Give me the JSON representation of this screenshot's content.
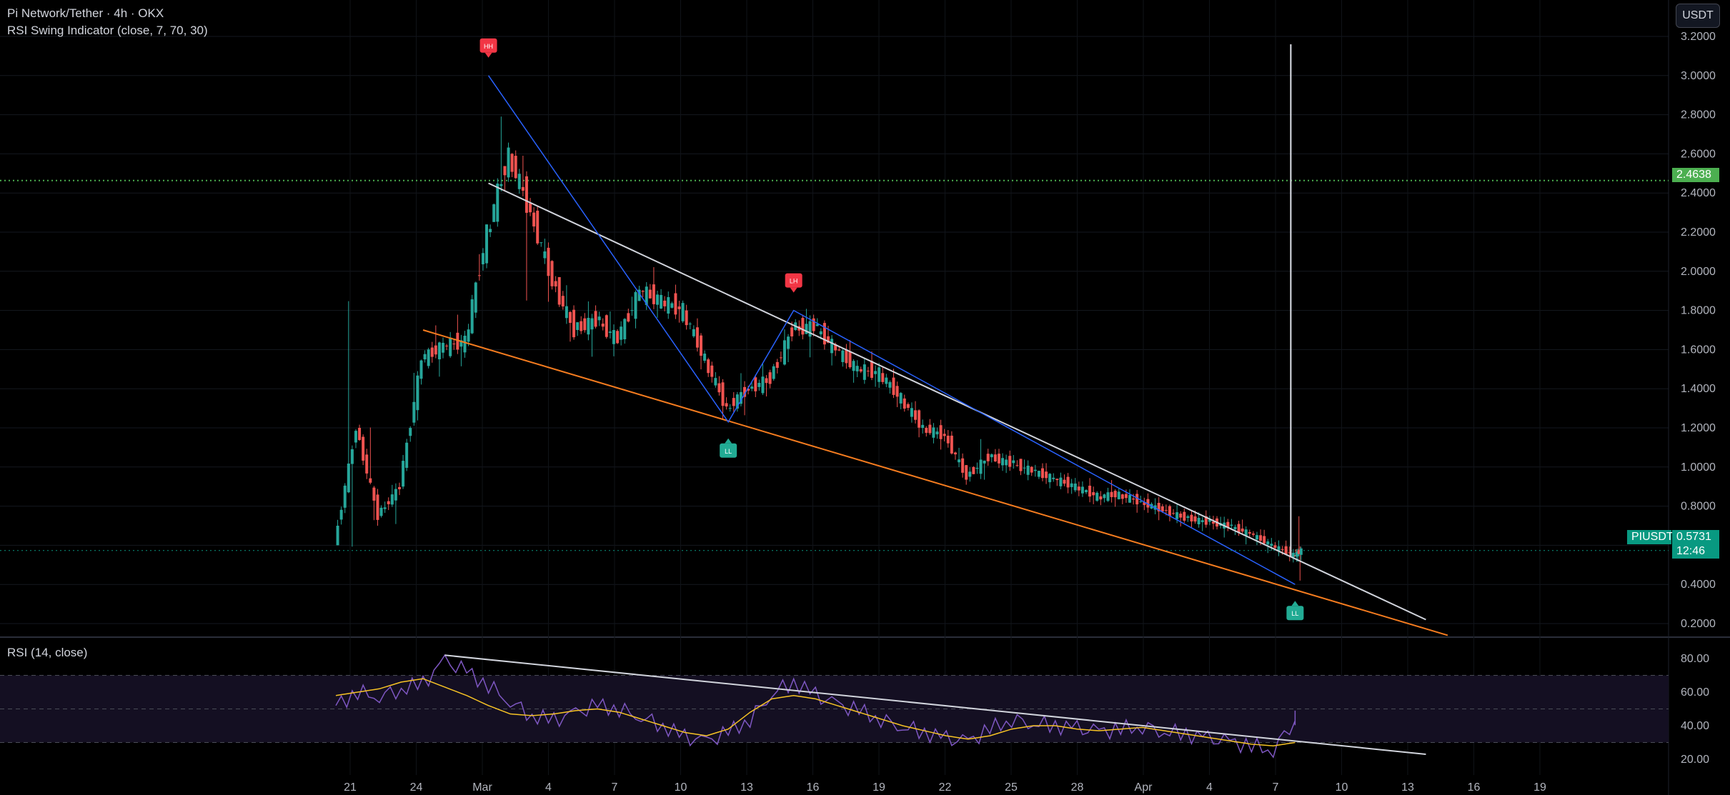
{
  "header": {
    "symbol_title": "Pi Network/Tether · 4h · OKX",
    "indicator_title": "RSI Swing Indicator (close, 7, 70, 30)",
    "currency_button": "USDT"
  },
  "price_axis": {
    "ticks": [
      "3.2000",
      "3.0000",
      "2.8000",
      "2.6000",
      "2.4000",
      "2.2000",
      "2.0000",
      "1.8000",
      "1.6000",
      "1.4000",
      "1.2000",
      "1.0000",
      "0.8000",
      "0.6000",
      "0.4000",
      "0.2000"
    ],
    "level_label": "2.4638",
    "symbol_label": "PIUSDT",
    "last_price": "0.5731",
    "countdown": "12:46"
  },
  "rsi_panel": {
    "title": "RSI (14, close)",
    "ticks": [
      "80.00",
      "60.00",
      "40.00",
      "20.00"
    ]
  },
  "time_axis": {
    "labels": [
      "21",
      "24",
      "Mar",
      "4",
      "7",
      "10",
      "13",
      "16",
      "19",
      "22",
      "25",
      "28",
      "Apr",
      "4",
      "7",
      "10",
      "13",
      "16",
      "19"
    ]
  },
  "swing_labels": [
    {
      "text": "HH",
      "kind": "high"
    },
    {
      "text": "LH",
      "kind": "high"
    },
    {
      "text": "LL",
      "kind": "low"
    },
    {
      "text": "LL",
      "kind": "low"
    }
  ],
  "colors": {
    "up": "#26a69a",
    "down": "#ef5350",
    "trendline": "#d1d4dc",
    "support": "#f57c1f",
    "swingline": "#2962ff",
    "rsi": "#7e57c2",
    "rsi_ma": "#f7c325",
    "level": "#4caf50"
  },
  "chart_data": {
    "type": "candlestick",
    "x_range": [
      "2025-02-20",
      "2025-04-20"
    ],
    "y_range": [
      0.1,
      3.2
    ],
    "horizontal_level": 2.4638,
    "last_price": 0.5731,
    "price_path": [
      [
        "2025-02-20",
        0.6,
        2.2,
        0.1,
        1.2
      ],
      [
        "2025-02-21",
        1.2,
        1.5,
        0.65,
        0.75
      ],
      [
        "2025-02-22",
        0.75,
        0.95,
        0.62,
        0.9
      ],
      [
        "2025-02-23",
        0.9,
        1.7,
        0.85,
        1.55
      ],
      [
        "2025-02-24",
        1.55,
        1.72,
        1.45,
        1.62
      ],
      [
        "2025-02-25",
        1.62,
        1.75,
        1.5,
        1.64
      ],
      [
        "2025-02-26",
        1.64,
        2.3,
        1.6,
        2.2
      ],
      [
        "2025-02-27",
        2.2,
        3.0,
        2.1,
        2.6
      ],
      [
        "2025-02-28",
        2.6,
        2.8,
        1.75,
        2.3
      ],
      [
        "2025-03-01",
        2.3,
        2.35,
        1.8,
        1.95
      ],
      [
        "2025-03-02",
        1.95,
        2.05,
        1.6,
        1.7
      ],
      [
        "2025-03-03",
        1.7,
        1.85,
        1.55,
        1.75
      ],
      [
        "2025-03-04",
        1.75,
        1.85,
        1.6,
        1.65
      ],
      [
        "2025-03-05",
        1.65,
        1.95,
        1.62,
        1.9
      ],
      [
        "2025-03-06",
        1.9,
        2.0,
        1.8,
        1.85
      ],
      [
        "2025-03-07",
        1.85,
        1.88,
        1.75,
        1.8
      ],
      [
        "2025-03-08",
        1.8,
        1.82,
        1.5,
        1.55
      ],
      [
        "2025-03-09",
        1.55,
        1.58,
        1.25,
        1.3
      ],
      [
        "2025-03-10",
        1.3,
        1.5,
        1.22,
        1.4
      ],
      [
        "2025-03-11",
        1.4,
        1.5,
        1.35,
        1.45
      ],
      [
        "2025-03-12",
        1.45,
        1.75,
        1.4,
        1.7
      ],
      [
        "2025-03-13",
        1.7,
        1.8,
        1.6,
        1.72
      ],
      [
        "2025-03-14",
        1.72,
        1.75,
        1.55,
        1.6
      ],
      [
        "2025-03-15",
        1.6,
        1.65,
        1.45,
        1.5
      ],
      [
        "2025-03-16",
        1.5,
        1.55,
        1.42,
        1.48
      ],
      [
        "2025-03-17",
        1.48,
        1.5,
        1.3,
        1.35
      ],
      [
        "2025-03-18",
        1.35,
        1.38,
        1.15,
        1.2
      ],
      [
        "2025-03-19",
        1.2,
        1.22,
        1.1,
        1.16
      ],
      [
        "2025-03-20",
        1.16,
        1.2,
        0.92,
        0.95
      ],
      [
        "2025-03-21",
        0.95,
        1.15,
        0.85,
        1.05
      ],
      [
        "2025-03-22",
        1.05,
        1.08,
        0.98,
        1.02
      ],
      [
        "2025-03-23",
        1.02,
        1.04,
        0.96,
        0.98
      ],
      [
        "2025-03-24",
        0.98,
        1.0,
        0.92,
        0.94
      ],
      [
        "2025-03-25",
        0.94,
        0.96,
        0.88,
        0.9
      ],
      [
        "2025-03-26",
        0.9,
        0.92,
        0.82,
        0.85
      ],
      [
        "2025-03-27",
        0.85,
        0.9,
        0.82,
        0.86
      ],
      [
        "2025-03-28",
        0.86,
        0.88,
        0.8,
        0.82
      ],
      [
        "2025-03-29",
        0.82,
        0.84,
        0.76,
        0.78
      ],
      [
        "2025-03-30",
        0.78,
        0.8,
        0.72,
        0.74
      ],
      [
        "2025-03-31",
        0.74,
        0.76,
        0.7,
        0.72
      ],
      [
        "2025-04-01",
        0.72,
        0.74,
        0.68,
        0.7
      ],
      [
        "2025-04-02",
        0.7,
        0.72,
        0.64,
        0.66
      ],
      [
        "2025-04-03",
        0.66,
        0.68,
        0.58,
        0.6
      ],
      [
        "2025-04-04",
        0.6,
        0.62,
        0.53,
        0.55
      ],
      [
        "2025-04-05",
        0.55,
        0.75,
        0.4,
        0.5731
      ]
    ],
    "trendlines": [
      {
        "name": "resistance",
        "color": "#d1d4dc",
        "points": [
          [
            "2025-02-27",
            2.45
          ],
          [
            "2025-04-11",
            0.22
          ]
        ]
      },
      {
        "name": "support",
        "color": "#f57c1f",
        "points": [
          [
            "2025-02-24",
            1.7
          ],
          [
            "2025-04-12",
            0.14
          ]
        ]
      },
      {
        "name": "swing",
        "color": "#2962ff",
        "points": [
          [
            "2025-02-27",
            3.0
          ],
          [
            "2025-03-10",
            1.23
          ],
          [
            "2025-03-13",
            1.8
          ],
          [
            "2025-04-05",
            0.4
          ]
        ]
      }
    ],
    "rsi": {
      "y_range": [
        15,
        85
      ],
      "levels": [
        70,
        50,
        30
      ],
      "trendline": [
        [
          "2025-02-25",
          82
        ],
        [
          "2025-04-11",
          23
        ]
      ],
      "values": [
        52,
        60,
        58,
        62,
        65,
        78,
        72,
        64,
        55,
        46,
        43,
        47,
        52,
        50,
        46,
        40,
        33,
        30,
        36,
        44,
        60,
        66,
        58,
        52,
        49,
        44,
        40,
        36,
        32,
        30,
        38,
        44,
        42,
        40,
        38,
        36,
        38,
        40,
        37,
        35,
        32,
        30,
        28,
        26,
        44
      ],
      "ma": [
        58,
        60,
        62,
        66,
        68,
        63,
        58,
        52,
        47,
        46,
        47,
        49,
        50,
        48,
        44,
        40,
        36,
        34,
        38,
        48,
        56,
        58,
        56,
        52,
        48,
        44,
        40,
        37,
        34,
        32,
        34,
        38,
        40,
        40,
        38,
        37,
        38,
        39,
        37,
        35,
        33,
        31,
        29,
        28,
        30
      ]
    }
  }
}
